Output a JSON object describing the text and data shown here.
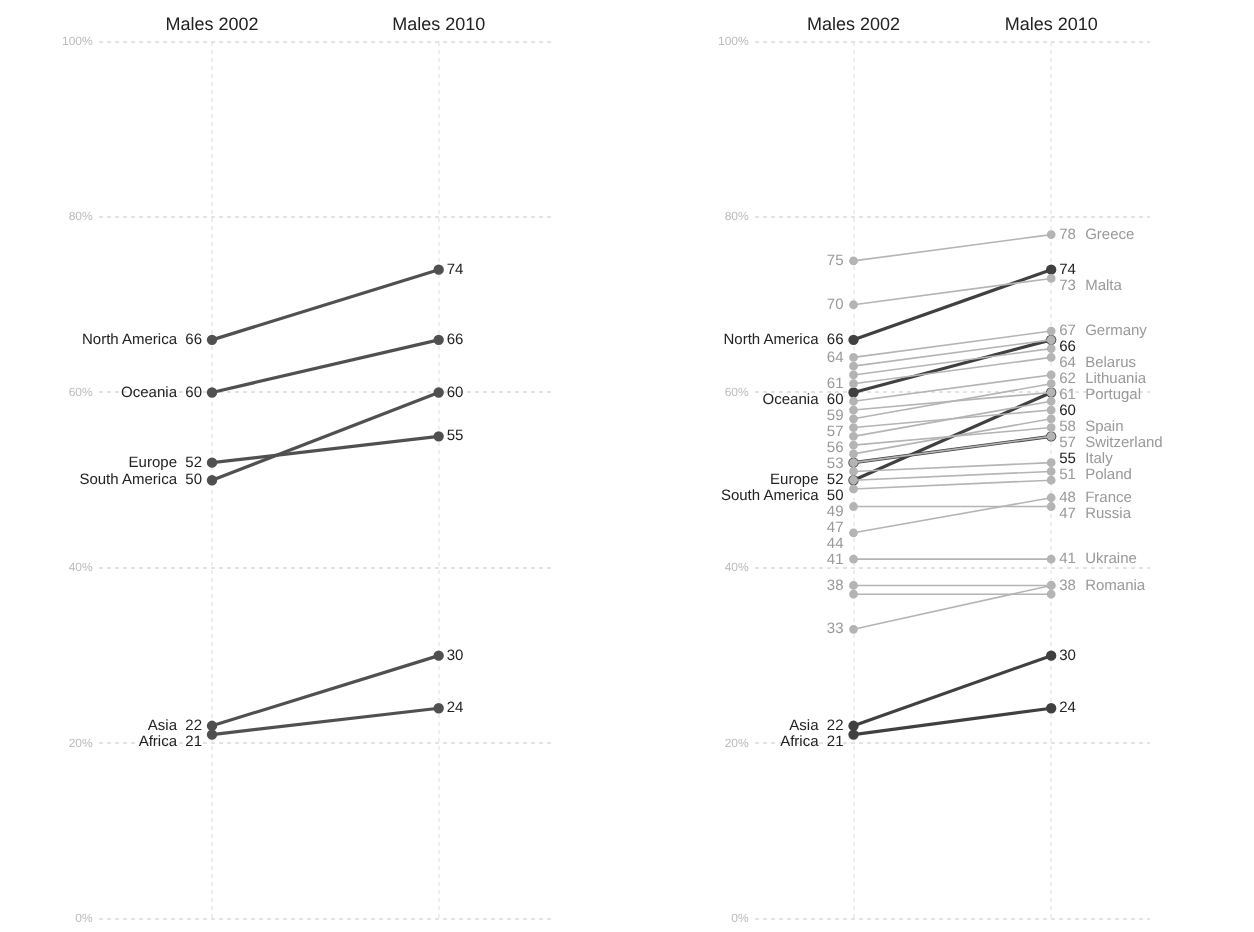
{
  "chart_data": [
    {
      "type": "line",
      "categories": [
        "Males 2002",
        "Males 2010"
      ],
      "ylim": [
        0,
        100
      ],
      "yticks": [
        {
          "value": 0,
          "label": "0%"
        },
        {
          "value": 20,
          "label": "20%"
        },
        {
          "value": 40,
          "label": "40%"
        },
        {
          "value": 60,
          "label": "60%"
        },
        {
          "value": 80,
          "label": "80%"
        },
        {
          "value": 100,
          "label": "100%"
        }
      ],
      "grid": true,
      "legend": false,
      "marker": "circle",
      "line_style": "solid",
      "series": [
        {
          "name": "North America",
          "color": "#505050",
          "values": [
            66,
            74
          ],
          "value_labels": [
            "66",
            "74"
          ]
        },
        {
          "name": "Oceania",
          "color": "#505050",
          "values": [
            60,
            66
          ],
          "value_labels": [
            "60",
            "66"
          ]
        },
        {
          "name": "Europe",
          "color": "#505050",
          "values": [
            52,
            55
          ],
          "value_labels": [
            "52",
            "55"
          ]
        },
        {
          "name": "South America",
          "color": "#505050",
          "values": [
            50,
            60
          ],
          "value_labels": [
            "50",
            "60"
          ]
        },
        {
          "name": "Asia",
          "color": "#505050",
          "values": [
            22,
            30
          ],
          "value_labels": [
            "22",
            "30"
          ]
        },
        {
          "name": "Africa",
          "color": "#505050",
          "values": [
            21,
            24
          ],
          "value_labels": [
            "21",
            "24"
          ]
        }
      ]
    },
    {
      "type": "line",
      "categories": [
        "Males 2002",
        "Males 2010"
      ],
      "ylim": [
        0,
        100
      ],
      "yticks": [
        {
          "value": 0,
          "label": "0%"
        },
        {
          "value": 20,
          "label": "20%"
        },
        {
          "value": 40,
          "label": "40%"
        },
        {
          "value": 60,
          "label": "60%"
        },
        {
          "value": 80,
          "label": "80%"
        },
        {
          "value": 100,
          "label": "100%"
        }
      ],
      "grid": true,
      "legend": false,
      "marker": "circle",
      "line_style": "solid",
      "series": [
        {
          "color": "#b4b4b4",
          "values": [
            75,
            78
          ],
          "value_labels": [
            "75",
            "78"
          ]
        },
        {
          "color": "#b4b4b4",
          "values": [
            70,
            73
          ],
          "value_labels": [
            "70",
            "73"
          ]
        },
        {
          "color": "#b4b4b4",
          "values": [
            64,
            67
          ],
          "value_labels": [
            "64",
            "67"
          ]
        },
        {
          "color": "#b4b4b4",
          "values": [
            63,
            66
          ],
          "value_labels": [
            null,
            null
          ]
        },
        {
          "color": "#b4b4b4",
          "values": [
            62,
            65
          ],
          "value_labels": [
            null,
            null
          ]
        },
        {
          "color": "#b4b4b4",
          "values": [
            61,
            64
          ],
          "value_labels": [
            "61",
            "64"
          ]
        },
        {
          "color": "#b4b4b4",
          "values": [
            59,
            62
          ],
          "value_labels": [
            "59",
            "62"
          ]
        },
        {
          "color": "#b4b4b4",
          "values": [
            58,
            60
          ],
          "value_labels": [
            null,
            null
          ]
        },
        {
          "color": "#b4b4b4",
          "values": [
            57,
            61
          ],
          "value_labels": [
            "57",
            "61"
          ]
        },
        {
          "color": "#b4b4b4",
          "values": [
            56,
            58
          ],
          "value_labels": [
            "56",
            "58"
          ]
        },
        {
          "color": "#b4b4b4",
          "values": [
            55,
            59
          ],
          "value_labels": [
            null,
            null
          ]
        },
        {
          "color": "#b4b4b4",
          "values": [
            54,
            56
          ],
          "value_labels": [
            null,
            null
          ]
        },
        {
          "color": "#b4b4b4",
          "values": [
            53,
            57
          ],
          "value_labels": [
            "53",
            "57"
          ]
        },
        {
          "color": "#b4b4b4",
          "values": [
            52,
            55
          ],
          "value_labels": [
            null,
            null
          ]
        },
        {
          "color": "#b4b4b4",
          "values": [
            51,
            52
          ],
          "value_labels": [
            null,
            null
          ]
        },
        {
          "color": "#b4b4b4",
          "values": [
            50,
            51
          ],
          "value_labels": [
            null,
            "51"
          ]
        },
        {
          "color": "#b4b4b4",
          "values": [
            49,
            50
          ],
          "value_labels": [
            "49",
            null
          ]
        },
        {
          "color": "#b4b4b4",
          "values": [
            44,
            48
          ],
          "value_labels": [
            "44",
            "48"
          ]
        },
        {
          "color": "#b4b4b4",
          "values": [
            47,
            47
          ],
          "value_labels": [
            "47",
            "47"
          ]
        },
        {
          "color": "#b4b4b4",
          "values": [
            41,
            41
          ],
          "value_labels": [
            "41",
            "41"
          ]
        },
        {
          "color": "#b4b4b4",
          "values": [
            38,
            38
          ],
          "value_labels": [
            "38",
            "38"
          ]
        },
        {
          "color": "#b4b4b4",
          "values": [
            37,
            37
          ],
          "value_labels": [
            null,
            null
          ]
        },
        {
          "color": "#b4b4b4",
          "values": [
            33,
            38
          ],
          "value_labels": [
            "33",
            null
          ]
        },
        {
          "name": "North America",
          "color": "#404040",
          "values": [
            66,
            74
          ],
          "value_labels": [
            "66",
            "74"
          ]
        },
        {
          "name": "Oceania",
          "color": "#404040",
          "values": [
            60,
            66
          ],
          "value_labels": [
            "60",
            "66"
          ]
        },
        {
          "name": "Europe",
          "color": "#404040",
          "values": [
            52,
            55
          ],
          "value_labels": [
            "52",
            "55"
          ]
        },
        {
          "name": "South America",
          "color": "#404040",
          "values": [
            50,
            60
          ],
          "value_labels": [
            "50",
            "60"
          ]
        },
        {
          "name": "Asia",
          "color": "#404040",
          "values": [
            22,
            30
          ],
          "value_labels": [
            "22",
            "30"
          ]
        },
        {
          "name": "Africa",
          "color": "#404040",
          "values": [
            21,
            24
          ],
          "value_labels": [
            "21",
            "24"
          ]
        }
      ],
      "annotations": [
        {
          "text": "Greece",
          "x": "Males 2010",
          "y": 78
        },
        {
          "text": "Malta",
          "x": "Males 2010",
          "y": 73
        },
        {
          "text": "Germany",
          "x": "Males 2010",
          "y": 67
        },
        {
          "text": "Belarus",
          "x": "Males 2010",
          "y": 64
        },
        {
          "text": "Lithuania",
          "x": "Males 2010",
          "y": 62
        },
        {
          "text": "Portugal",
          "x": "Males 2010",
          "y": 61
        },
        {
          "text": "Spain",
          "x": "Males 2010",
          "y": 58
        },
        {
          "text": "Switzerland",
          "x": "Males 2010",
          "y": 57
        },
        {
          "text": "Italy",
          "x": "Males 2010",
          "y": 55
        },
        {
          "text": "Poland",
          "x": "Males 2010",
          "y": 51
        },
        {
          "text": "France",
          "x": "Males 2010",
          "y": 48
        },
        {
          "text": "Russia",
          "x": "Males 2010",
          "y": 47
        },
        {
          "text": "Ukraine",
          "x": "Males 2010",
          "y": 41
        },
        {
          "text": "Romania",
          "x": "Males 2010",
          "y": 38
        }
      ]
    }
  ]
}
